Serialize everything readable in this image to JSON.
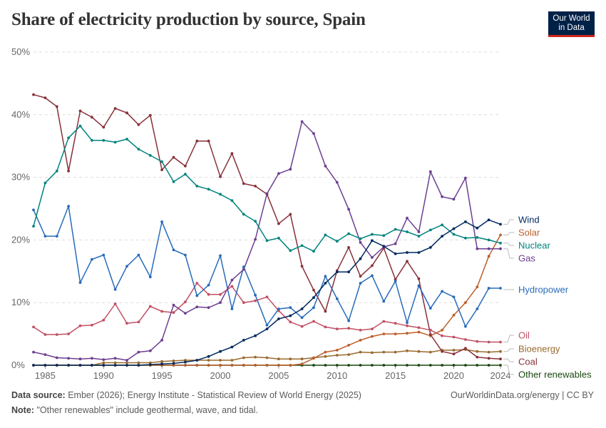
{
  "title": "Share of electricity production by source, Spain",
  "logo": {
    "line1": "Our World",
    "line2": "in Data"
  },
  "footer": {
    "source_label": "Data source:",
    "source_text": "Ember (2026); Energy Institute - Statistical Review of World Energy (2025)",
    "note_label": "Note:",
    "note_text": "\"Other renewables\" include geothermal, wave, and tidal.",
    "credit": "OurWorldinData.org/energy | CC BY"
  },
  "colors": {
    "Wind": "#002a5e",
    "Solar": "#bc5f2c",
    "Nuclear": "#00847e",
    "Gas": "#6d3e91",
    "Hydropower": "#286bbb",
    "Oil": "#c15065",
    "Bioenergy": "#9a6b2f",
    "Coal": "#883039",
    "Other renewables": "#18470f"
  },
  "chart_data": {
    "type": "line",
    "title": "Share of electricity production by source, Spain",
    "xlabel": "",
    "ylabel": "",
    "xlim": [
      1984,
      2024
    ],
    "ylim": [
      0,
      50
    ],
    "y_ticks": [
      "0%",
      "10%",
      "20%",
      "30%",
      "40%",
      "50%"
    ],
    "y_tick_values": [
      0,
      10,
      20,
      30,
      40,
      50
    ],
    "x_ticks": [
      "1985",
      "1990",
      "1995",
      "2000",
      "2005",
      "2010",
      "2015",
      "2020",
      "2024"
    ],
    "x_tick_values": [
      1985,
      1990,
      1995,
      2000,
      2005,
      2010,
      2015,
      2020,
      2024
    ],
    "x": [
      1984,
      1985,
      1986,
      1987,
      1988,
      1989,
      1990,
      1991,
      1992,
      1993,
      1994,
      1995,
      1996,
      1997,
      1998,
      1999,
      2000,
      2001,
      2002,
      2003,
      2004,
      2005,
      2006,
      2007,
      2008,
      2009,
      2010,
      2011,
      2012,
      2013,
      2014,
      2015,
      2016,
      2017,
      2018,
      2019,
      2020,
      2021,
      2022,
      2023,
      2024
    ],
    "series": [
      {
        "name": "Coal",
        "values": [
          43.2,
          42.7,
          41.3,
          31.0,
          40.6,
          39.6,
          38.0,
          41.0,
          40.3,
          38.4,
          39.9,
          31.2,
          33.2,
          31.8,
          35.8,
          35.8,
          30.1,
          33.8,
          29.0,
          28.6,
          27.3,
          22.6,
          24.1,
          15.8,
          12.0,
          8.6,
          15.1,
          18.8,
          14.2,
          15.9,
          18.7,
          13.7,
          16.6,
          13.8,
          4.9,
          2.2,
          1.8,
          2.7,
          1.3,
          1.1,
          1.0
        ]
      },
      {
        "name": "Nuclear",
        "values": [
          22.2,
          29.1,
          31.0,
          36.3,
          38.2,
          35.9,
          35.9,
          35.6,
          36.1,
          34.5,
          33.5,
          32.5,
          29.3,
          30.5,
          28.6,
          28.1,
          27.3,
          26.3,
          24.1,
          23.0,
          19.9,
          20.3,
          18.3,
          19.1,
          18.2,
          20.8,
          19.8,
          21.0,
          20.2,
          20.9,
          20.7,
          21.7,
          21.3,
          20.6,
          21.6,
          22.4,
          20.9,
          20.3,
          20.4,
          20.0,
          19.5
        ]
      },
      {
        "name": "Hydropower",
        "values": [
          24.8,
          20.6,
          20.6,
          25.4,
          13.2,
          16.9,
          17.6,
          12.1,
          15.8,
          17.6,
          14.1,
          22.9,
          18.4,
          17.6,
          11.1,
          12.8,
          17.5,
          9.0,
          15.7,
          11.2,
          6.4,
          9.0,
          9.2,
          7.6,
          9.2,
          14.2,
          10.6,
          7.1,
          13.1,
          14.3,
          10.2,
          13.4,
          6.8,
          12.7,
          9.1,
          11.8,
          10.9,
          6.2,
          9.0,
          12.3,
          12.3
        ]
      },
      {
        "name": "Gas",
        "values": [
          2.1,
          1.7,
          1.2,
          1.1,
          1.0,
          1.1,
          0.9,
          1.1,
          0.8,
          2.1,
          2.3,
          4.0,
          9.6,
          8.3,
          9.3,
          9.2,
          10.0,
          13.6,
          15.3,
          20.1,
          27.4,
          30.6,
          31.3,
          38.9,
          37.0,
          31.8,
          29.2,
          24.9,
          19.6,
          17.2,
          18.9,
          19.4,
          23.5,
          21.3,
          30.9,
          26.9,
          26.5,
          29.9,
          18.6,
          18.6,
          18.6
        ]
      },
      {
        "name": "Oil",
        "values": [
          6.1,
          4.9,
          4.9,
          5.0,
          6.3,
          6.4,
          7.2,
          9.8,
          6.7,
          6.9,
          9.4,
          8.6,
          8.4,
          10.1,
          13.1,
          11.3,
          11.3,
          12.6,
          10.0,
          10.3,
          10.9,
          8.7,
          6.9,
          6.2,
          7.0,
          6.1,
          5.8,
          5.9,
          5.6,
          5.8,
          7.0,
          6.7,
          6.3,
          6.0,
          5.6,
          4.7,
          4.5,
          4.1,
          3.8,
          3.7,
          3.7
        ]
      },
      {
        "name": "Wind",
        "values": [
          0,
          0,
          0,
          0,
          0,
          0,
          0,
          0,
          0,
          0,
          0.1,
          0.2,
          0.3,
          0.5,
          0.8,
          1.4,
          2.2,
          2.9,
          4.0,
          4.7,
          5.8,
          7.4,
          7.9,
          9.0,
          10.8,
          13.1,
          14.9,
          14.9,
          17.0,
          19.9,
          19.0,
          17.8,
          18.0,
          18.0,
          18.8,
          20.6,
          21.8,
          22.9,
          21.9,
          23.2,
          22.5
        ]
      },
      {
        "name": "Solar",
        "values": [
          0,
          0,
          0,
          0,
          0,
          0,
          0,
          0,
          0,
          0,
          0,
          0,
          0,
          0,
          0,
          0,
          0,
          0,
          0,
          0,
          0,
          0,
          0,
          0.2,
          1.1,
          2.1,
          2.4,
          3.2,
          4.0,
          4.6,
          5.0,
          5.0,
          5.1,
          5.3,
          4.7,
          5.6,
          8.0,
          10.0,
          12.5,
          17.4,
          20.8
        ]
      },
      {
        "name": "Bioenergy",
        "values": [
          0,
          0,
          0,
          0,
          0,
          0,
          0.4,
          0.4,
          0.4,
          0.4,
          0.4,
          0.6,
          0.7,
          0.8,
          0.8,
          0.8,
          0.8,
          0.8,
          1.2,
          1.3,
          1.2,
          1.0,
          1.0,
          1.0,
          1.2,
          1.4,
          1.6,
          1.7,
          2.1,
          2.0,
          2.1,
          2.1,
          2.3,
          2.2,
          2.1,
          2.4,
          2.4,
          2.5,
          2.2,
          2.1,
          2.2
        ]
      },
      {
        "name": "Other renewables",
        "values": [
          0,
          0,
          0,
          0,
          0,
          0,
          0,
          0,
          0,
          0,
          0,
          0,
          0,
          0,
          0,
          0,
          0,
          0,
          0,
          0,
          0,
          0,
          0,
          0,
          0,
          0,
          0,
          0,
          0,
          0,
          0,
          0,
          0,
          0,
          0,
          0,
          0,
          0,
          0,
          0,
          0
        ]
      }
    ],
    "legend_order": [
      "Wind",
      "Solar",
      "Nuclear",
      "Gas",
      "Hydropower",
      "Oil",
      "Bioenergy",
      "Coal",
      "Other renewables"
    ],
    "legend_placement": "right"
  }
}
